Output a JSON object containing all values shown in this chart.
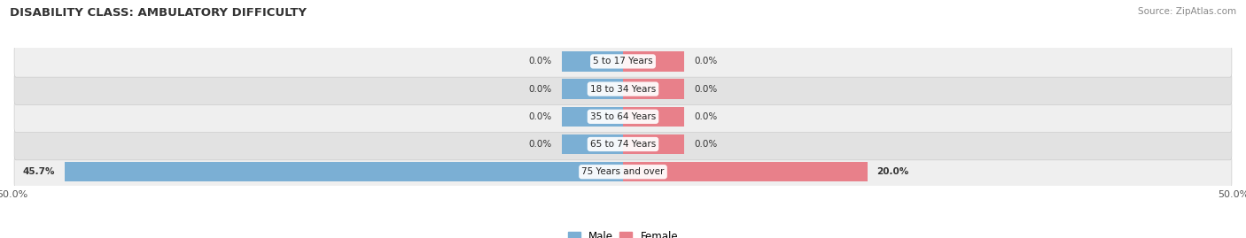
{
  "title": "DISABILITY CLASS: AMBULATORY DIFFICULTY",
  "source": "Source: ZipAtlas.com",
  "categories": [
    "75 Years and over",
    "65 to 74 Years",
    "35 to 64 Years",
    "18 to 34 Years",
    "5 to 17 Years"
  ],
  "male_values": [
    45.7,
    0.0,
    0.0,
    0.0,
    0.0
  ],
  "female_values": [
    20.0,
    0.0,
    0.0,
    0.0,
    0.0
  ],
  "zero_stub": 5.0,
  "max_value": 50.0,
  "male_color": "#7bafd4",
  "female_color": "#e8808a",
  "row_bg_color_odd": "#efefef",
  "row_bg_color_even": "#e2e2e2",
  "title_fontsize": 9.5,
  "label_fontsize": 7.5,
  "tick_fontsize": 8,
  "title_color": "#333333",
  "source_color": "#888888",
  "label_color": "#333333"
}
